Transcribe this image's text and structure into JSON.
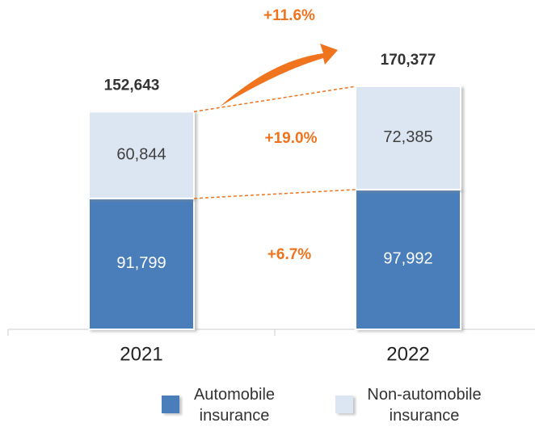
{
  "chart_data": {
    "type": "stacked_bar",
    "categories": [
      "2021",
      "2022"
    ],
    "series": [
      {
        "name": "Automobile insurance",
        "color": "#4a7ebb",
        "values": [
          91799,
          97992
        ],
        "value_labels": [
          "91,799",
          "97,992"
        ]
      },
      {
        "name": "Non-automobile insurance",
        "color": "#dce6f2",
        "values": [
          60844,
          72385
        ],
        "value_labels": [
          "60,844",
          "72,385"
        ]
      }
    ],
    "totals": [
      152643,
      170377
    ],
    "total_labels": [
      "152,643",
      "170,377"
    ],
    "annotations": [
      "+11.6%",
      "+19.0%",
      "+6.7%"
    ],
    "annotation_color": "#f0731e",
    "ylim": [
      0,
      180000
    ]
  }
}
